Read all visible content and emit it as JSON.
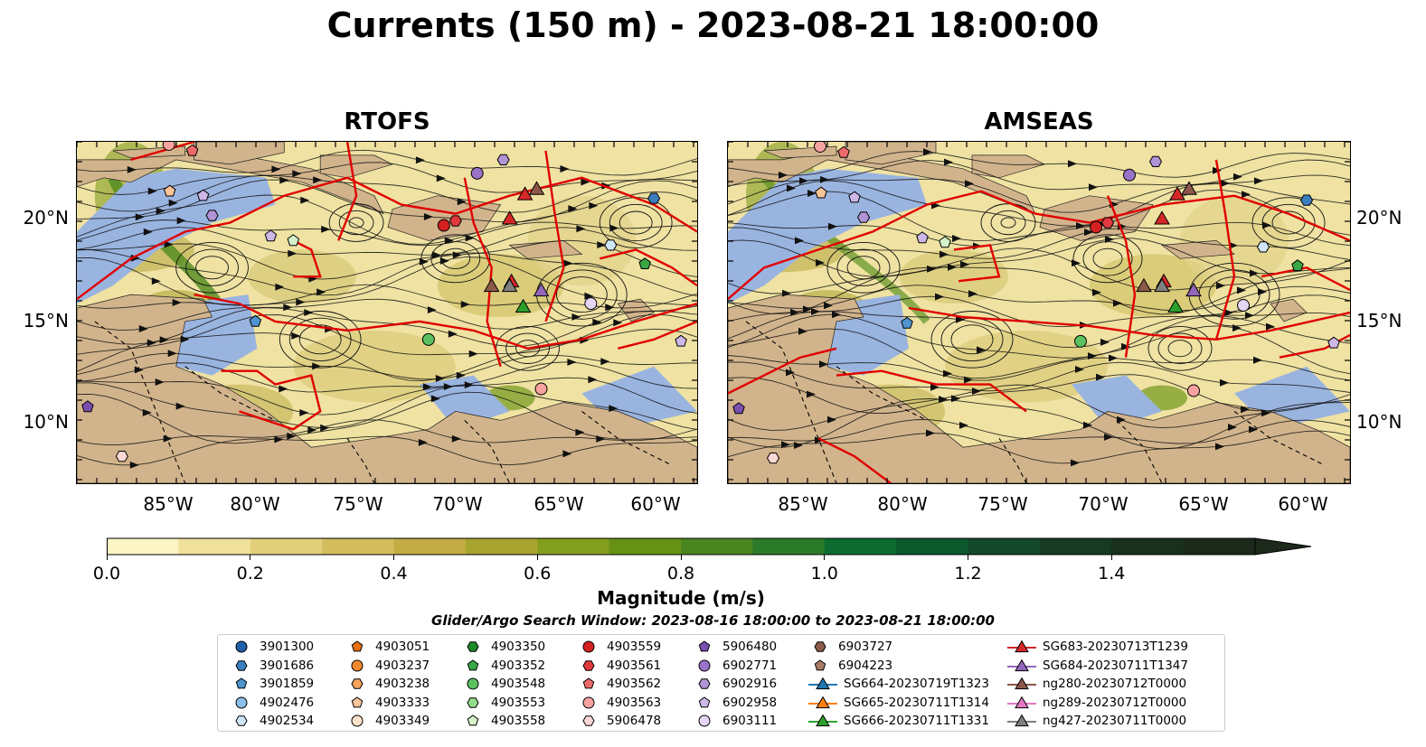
{
  "title": "Currents (150 m) - 2023-08-21 18:00:00",
  "panels": [
    {
      "title": "RTOFS"
    },
    {
      "title": "AMSEAS"
    }
  ],
  "lat_ticks": [
    "20°N",
    "15°N",
    "10°N"
  ],
  "lon_ticks": [
    "85°W",
    "80°W",
    "75°W",
    "70°W",
    "65°W",
    "60°W"
  ],
  "colorbar": {
    "label": "Magnitude (m/s)",
    "ticks": [
      "0.0",
      "0.2",
      "0.4",
      "0.6",
      "0.8",
      "1.0",
      "1.2",
      "1.4"
    ],
    "colors": [
      "#fcf5c4",
      "#f0e29a",
      "#e2cf79",
      "#d3bd5c",
      "#c3ac43",
      "#a8a52f",
      "#849e1d",
      "#669114",
      "#4a8620",
      "#2b7a29",
      "#0d6b30",
      "#0b582d",
      "#14482a",
      "#163a24",
      "#19301f",
      "#1c291b"
    ]
  },
  "search_window": "Glider/Argo Search Window: 2023-08-16 18:00:00 to 2023-08-21 18:00:00",
  "map_colors": {
    "land": "#d2b48c",
    "shelf": "#9ab4e0",
    "front": "#e00000",
    "border": "#000000"
  },
  "legend": [
    [
      {
        "label": "3901300",
        "marker": "circle",
        "color": "#1f5fa8"
      },
      {
        "label": "3901686",
        "marker": "hexagon",
        "color": "#3a7ebf"
      },
      {
        "label": "3901859",
        "marker": "pentagon",
        "color": "#4f93cf"
      },
      {
        "label": "4902476",
        "marker": "circle",
        "color": "#8cc0e8"
      },
      {
        "label": "4902534",
        "marker": "hexagon",
        "color": "#cfe6f7"
      }
    ],
    [
      {
        "label": "4903051",
        "marker": "pentagon",
        "color": "#e8700f"
      },
      {
        "label": "4903237",
        "marker": "circle",
        "color": "#f2892e"
      },
      {
        "label": "4903238",
        "marker": "hexagon",
        "color": "#f7a35c"
      },
      {
        "label": "4903333",
        "marker": "pentagon",
        "color": "#fbc497"
      },
      {
        "label": "4903349",
        "marker": "circle",
        "color": "#fde3cc"
      }
    ],
    [
      {
        "label": "4903350",
        "marker": "hexagon",
        "color": "#1a8a2a"
      },
      {
        "label": "4903352",
        "marker": "pentagon",
        "color": "#38a845"
      },
      {
        "label": "4903548",
        "marker": "circle",
        "color": "#5cc161"
      },
      {
        "label": "4903553",
        "marker": "hexagon",
        "color": "#94dc8d"
      },
      {
        "label": "4903558",
        "marker": "pentagon",
        "color": "#d3f2c9"
      }
    ],
    [
      {
        "label": "4903559",
        "marker": "circle",
        "color": "#d42020"
      },
      {
        "label": "4903561",
        "marker": "hexagon",
        "color": "#e0393e"
      },
      {
        "label": "4903562",
        "marker": "pentagon",
        "color": "#ee6a6a"
      },
      {
        "label": "4903563",
        "marker": "circle",
        "color": "#f7a3a0"
      },
      {
        "label": "5906478",
        "marker": "hexagon",
        "color": "#fcd8d5"
      }
    ],
    [
      {
        "label": "5906480",
        "marker": "pentagon",
        "color": "#7a4fb0"
      },
      {
        "label": "6902771",
        "marker": "circle",
        "color": "#9a72c8"
      },
      {
        "label": "6902916",
        "marker": "hexagon",
        "color": "#b194d6"
      },
      {
        "label": "6902958",
        "marker": "pentagon",
        "color": "#cdb8e8"
      },
      {
        "label": "6903111",
        "marker": "circle",
        "color": "#e4d6f4"
      }
    ],
    [
      {
        "label": "6903727",
        "marker": "hexagon",
        "color": "#8c5a48"
      },
      {
        "label": "6904223",
        "marker": "pentagon",
        "color": "#a97a66"
      },
      {
        "label": "SG664-20230719T1323",
        "marker": "triangle-line",
        "color": "#1f77b4"
      },
      {
        "label": "SG665-20230711T1314",
        "marker": "triangle-line",
        "color": "#ff7f0e"
      },
      {
        "label": "SG666-20230711T1331",
        "marker": "triangle-line",
        "color": "#2ca02c"
      }
    ],
    [
      {
        "label": "SG683-20230713T1239",
        "marker": "triangle-line",
        "color": "#d62728"
      },
      {
        "label": "SG684-20230711T1347",
        "marker": "triangle-line",
        "color": "#9467bd"
      },
      {
        "label": "ng280-20230712T0000",
        "marker": "triangle-line",
        "color": "#8c564b"
      },
      {
        "label": "ng289-20230712T0000",
        "marker": "triangle-line",
        "color": "#e377c2"
      },
      {
        "label": "ng427-20230711T0000",
        "marker": "triangle-line",
        "color": "#7f7f7f"
      }
    ]
  ]
}
